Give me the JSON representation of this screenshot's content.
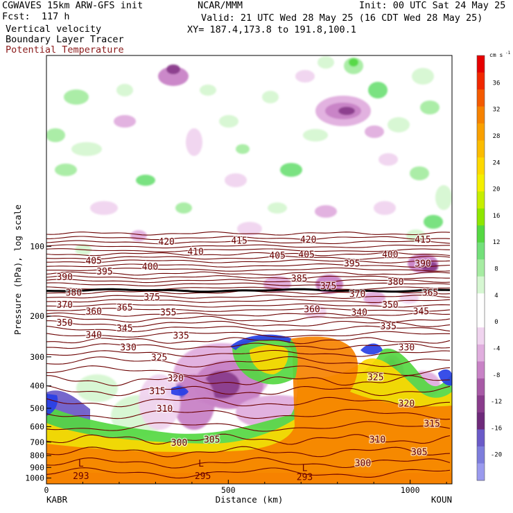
{
  "header": {
    "model": "CGWAVES 15km ARW-GFS init",
    "fcst": "Fcst:  117 h",
    "field1": "Vertical velocity",
    "field2": "Boundary Layer Tracer",
    "field3": "Potential Temperature",
    "org": "NCAR/MMM",
    "init": "Init: 00 UTC Sat 24 May 25",
    "valid": "Valid: 21 UTC Wed 28 May 25 (16 CDT Wed 28 May 25)",
    "xy": "XY= 187.4,173.8 to 191.8,100.1"
  },
  "colors": {
    "theta_line": "#6b0000",
    "tropo_line": "#000000",
    "title_red": "#8b1a1a"
  },
  "chart_data": {
    "type": "heatmap",
    "title": "",
    "xlabel": "Distance (km)",
    "ylabel": "Pressure (hPa), log scale",
    "xlim": [
      0,
      1115
    ],
    "ylim": [
      1060,
      15
    ],
    "x_ticks": [
      0,
      500,
      1000
    ],
    "y_ticks": [
      100,
      200,
      300,
      400,
      500,
      600,
      700,
      800,
      900,
      1000
    ],
    "x_endpoints": {
      "left": "KABR",
      "right": "KOUN"
    },
    "colorbar": {
      "unit": "cm s",
      "unit_exp": "-1",
      "ticks": [
        36,
        32,
        28,
        24,
        20,
        16,
        12,
        8,
        4,
        0,
        -4,
        -8,
        -12,
        -16,
        -20
      ],
      "colors": [
        "#e60000",
        "#f02800",
        "#f45a00",
        "#f68200",
        "#f9a000",
        "#fbbc00",
        "#fdd800",
        "#f4ef00",
        "#c6ee00",
        "#8ee600",
        "#55d842",
        "#73e07a",
        "#a6eca2",
        "#d6f7d2",
        "#ffffff",
        "#ffffff",
        "#f0d4ef",
        "#e0aede",
        "#c882c6",
        "#a85aa6",
        "#8a3c8c",
        "#6e2a7a",
        "#6a5ac8",
        "#7d7ddc",
        "#9a9aee"
      ]
    },
    "theta_labels": [
      {
        "x": 330,
        "p": 95,
        "text": "420"
      },
      {
        "x": 530,
        "p": 94,
        "text": "415"
      },
      {
        "x": 410,
        "p": 105,
        "text": "410"
      },
      {
        "x": 720,
        "p": 93,
        "text": "420"
      },
      {
        "x": 1035,
        "p": 93,
        "text": "415"
      },
      {
        "x": 130,
        "p": 115,
        "text": "405"
      },
      {
        "x": 285,
        "p": 122,
        "text": "400"
      },
      {
        "x": 715,
        "p": 108,
        "text": "405"
      },
      {
        "x": 635,
        "p": 109,
        "text": "405"
      },
      {
        "x": 840,
        "p": 118,
        "text": "395"
      },
      {
        "x": 945,
        "p": 108,
        "text": "400"
      },
      {
        "x": 1035,
        "p": 118,
        "text": "390"
      },
      {
        "x": 50,
        "p": 135,
        "text": "390"
      },
      {
        "x": 160,
        "p": 128,
        "text": "395"
      },
      {
        "x": 75,
        "p": 158,
        "text": "380"
      },
      {
        "x": 290,
        "p": 165,
        "text": "375"
      },
      {
        "x": 695,
        "p": 137,
        "text": "385"
      },
      {
        "x": 775,
        "p": 148,
        "text": "375"
      },
      {
        "x": 855,
        "p": 160,
        "text": "370"
      },
      {
        "x": 960,
        "p": 142,
        "text": "380"
      },
      {
        "x": 1055,
        "p": 158,
        "text": "365"
      },
      {
        "x": 50,
        "p": 178,
        "text": "370"
      },
      {
        "x": 130,
        "p": 190,
        "text": "360"
      },
      {
        "x": 215,
        "p": 183,
        "text": "365"
      },
      {
        "x": 335,
        "p": 192,
        "text": "355"
      },
      {
        "x": 730,
        "p": 186,
        "text": "360"
      },
      {
        "x": 860,
        "p": 192,
        "text": "340"
      },
      {
        "x": 945,
        "p": 178,
        "text": "350"
      },
      {
        "x": 1030,
        "p": 190,
        "text": "345"
      },
      {
        "x": 50,
        "p": 213,
        "text": "350"
      },
      {
        "x": 130,
        "p": 240,
        "text": "340"
      },
      {
        "x": 215,
        "p": 225,
        "text": "345"
      },
      {
        "x": 370,
        "p": 242,
        "text": "335"
      },
      {
        "x": 225,
        "p": 272,
        "text": "330"
      },
      {
        "x": 940,
        "p": 220,
        "text": "335"
      },
      {
        "x": 990,
        "p": 272,
        "text": "330"
      },
      {
        "x": 310,
        "p": 300,
        "text": "325"
      },
      {
        "x": 355,
        "p": 370,
        "text": "320"
      },
      {
        "x": 305,
        "p": 420,
        "text": "315"
      },
      {
        "x": 325,
        "p": 500,
        "text": "310"
      },
      {
        "x": 905,
        "p": 365,
        "text": "325"
      },
      {
        "x": 990,
        "p": 475,
        "text": "320"
      },
      {
        "x": 1060,
        "p": 580,
        "text": "315"
      },
      {
        "x": 910,
        "p": 680,
        "text": "310"
      },
      {
        "x": 1025,
        "p": 770,
        "text": "305"
      },
      {
        "x": 455,
        "p": 680,
        "text": "305"
      },
      {
        "x": 365,
        "p": 700,
        "text": "300"
      },
      {
        "x": 870,
        "p": 860,
        "text": "300"
      }
    ],
    "surface_labels": [
      {
        "x": 95,
        "p": 862,
        "text": "L"
      },
      {
        "x": 95,
        "p": 975,
        "text": "293"
      },
      {
        "x": 425,
        "p": 862,
        "text": "L"
      },
      {
        "x": 430,
        "p": 975,
        "text": "295"
      },
      {
        "x": 710,
        "p": 900,
        "text": "L"
      },
      {
        "x": 710,
        "p": 985,
        "text": "293"
      }
    ]
  }
}
